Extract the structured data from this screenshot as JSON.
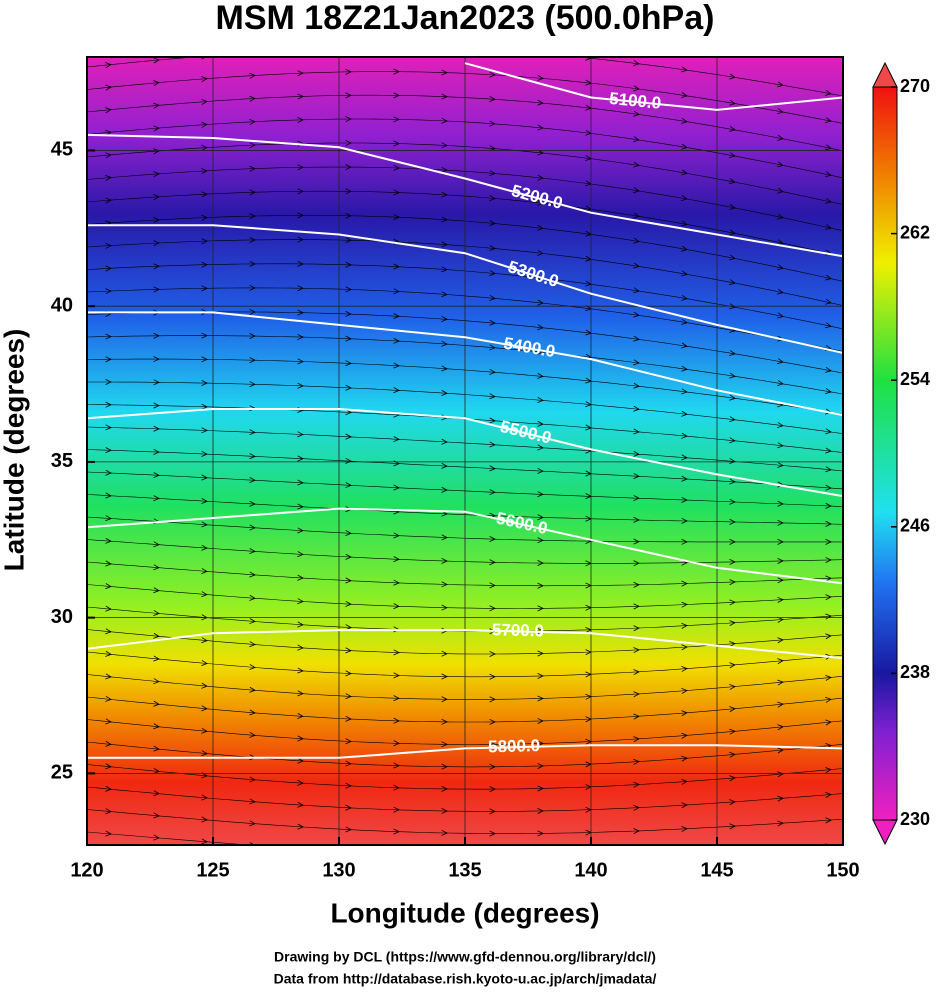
{
  "title": "MSM 18Z21Jan2023 (500.0hPa)",
  "x_label": "Longitude (degrees)",
  "y_label": "Latitude  (degrees)",
  "xlim": [
    120,
    150
  ],
  "xticks": [
    120,
    125,
    130,
    135,
    140,
    145,
    150
  ],
  "ylim": [
    22.7,
    48.0
  ],
  "yticks": [
    25,
    30,
    35,
    40,
    45
  ],
  "colorbar": {
    "lim": [
      230,
      270
    ],
    "ticks": [
      230,
      238,
      246,
      254,
      262,
      270
    ]
  },
  "lons": [
    120,
    125,
    130,
    135,
    140,
    145,
    150
  ],
  "contours": [
    {
      "value": 5100,
      "label": "5100.0",
      "lats": [
        null,
        null,
        null,
        47.8,
        46.7,
        46.3,
        46.7
      ]
    },
    {
      "value": 5200,
      "label": "5200.0",
      "lats": [
        45.5,
        45.4,
        45.1,
        44.1,
        43.0,
        42.3,
        41.6
      ]
    },
    {
      "value": 5300,
      "label": "5300.0",
      "lats": [
        42.6,
        42.6,
        42.3,
        41.7,
        40.4,
        39.4,
        38.5
      ]
    },
    {
      "value": 5400,
      "label": "5400.0",
      "lats": [
        39.8,
        39.8,
        39.4,
        39.0,
        38.3,
        37.3,
        36.5
      ]
    },
    {
      "value": 5500,
      "label": "5500.0",
      "lats": [
        36.4,
        36.7,
        36.7,
        36.4,
        35.4,
        34.6,
        33.9
      ]
    },
    {
      "value": 5600,
      "label": "5600.0",
      "lats": [
        32.9,
        33.2,
        33.5,
        33.4,
        32.5,
        31.6,
        31.1
      ]
    },
    {
      "value": 5700,
      "label": "5700.0",
      "lats": [
        29.0,
        29.5,
        29.6,
        29.6,
        29.5,
        29.1,
        28.7
      ]
    },
    {
      "value": 5800,
      "label": "5800.0",
      "lats": [
        25.5,
        25.5,
        25.5,
        25.8,
        25.9,
        25.9,
        25.8
      ]
    }
  ],
  "credits": [
    "Drawing by DCL (https://www.gfd-dennou.org/library/dcl/)",
    "Data from http://database.rish.kyoto-u.ac.jp/arch/jmadata/"
  ]
}
